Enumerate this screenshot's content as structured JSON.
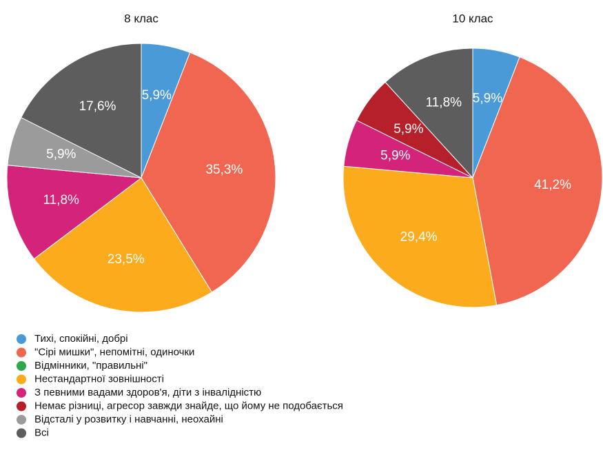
{
  "chart_data": [
    {
      "type": "pie",
      "title": "8 клас",
      "values": [
        5.9,
        35.3,
        0,
        23.5,
        11.8,
        0,
        5.9,
        17.6
      ],
      "value_labels": [
        "5,9%",
        "35,3%",
        null,
        "23,5%",
        "11,8%",
        null,
        "5,9%",
        "17,6%"
      ]
    },
    {
      "type": "pie",
      "title": "10 клас",
      "values": [
        5.9,
        41.2,
        0,
        29.4,
        5.9,
        5.9,
        0,
        11.8
      ],
      "value_labels": [
        "5,9%",
        "41,2%",
        null,
        "29,4%",
        "5,9%",
        "5,9%",
        null,
        "11,8%"
      ]
    }
  ],
  "legend": {
    "categories": [
      "Тихі, спокійні, добрі",
      "\"Сірі мишки\", непомітні, одиночки",
      "Відмінники, \"правильні\"",
      "Нестандартної зовнішності",
      "З певними вадами здоров'я, діти з інвалідністю",
      "Немає різниці, агресор завжди знайде, що йому не подобається",
      "Відсталі у розвитку і навчанні, неохайні",
      "Всі"
    ],
    "colors": [
      "#4a9ad8",
      "#f06650",
      "#2ea84a",
      "#fbab1c",
      "#d4247a",
      "#b5202a",
      "#9b9b9b",
      "#5d5d5d"
    ]
  }
}
